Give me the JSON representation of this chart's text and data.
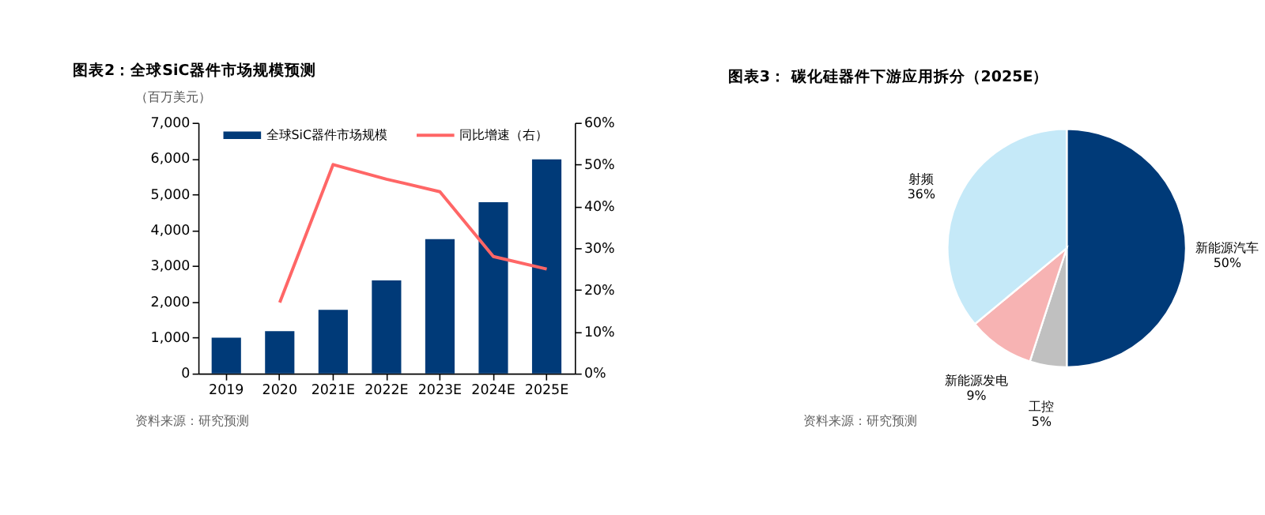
{
  "chart_data": [
    {
      "type": "bar",
      "title": "图表2：全球SiC器件市场规模预测",
      "ylabel": "（百万美元）",
      "categories": [
        "2019",
        "2020",
        "2021E",
        "2022E",
        "2023E",
        "2024E",
        "2025E"
      ],
      "series": [
        {
          "name": "全球SiC器件市场规模",
          "type": "bar",
          "color": "#003a78",
          "values": [
            1000,
            1180,
            1780,
            2600,
            3750,
            4780,
            5980
          ]
        },
        {
          "name": "同比增速（右）",
          "type": "line",
          "axis": "y2",
          "color": "#ff6666",
          "values": [
            null,
            17,
            50,
            46.5,
            43.5,
            28,
            25
          ]
        }
      ],
      "ylim": [
        0,
        7000
      ],
      "yticks": [
        {
          "value": 0,
          "label": "0"
        },
        {
          "value": 1000,
          "label": "1,000"
        },
        {
          "value": 2000,
          "label": "2,000"
        },
        {
          "value": 3000,
          "label": "3,000"
        },
        {
          "value": 4000,
          "label": "4,000"
        },
        {
          "value": 5000,
          "label": "5,000"
        },
        {
          "value": 6000,
          "label": "6,000"
        },
        {
          "value": 7000,
          "label": "7,000"
        }
      ],
      "y2lim": [
        0,
        60
      ],
      "y2ticks": [
        {
          "value": 0,
          "label": "0%"
        },
        {
          "value": 10,
          "label": "10%"
        },
        {
          "value": 20,
          "label": "20%"
        },
        {
          "value": 30,
          "label": "30%"
        },
        {
          "value": 40,
          "label": "40%"
        },
        {
          "value": 50,
          "label": "50%"
        },
        {
          "value": 60,
          "label": "60%"
        }
      ],
      "grid": false,
      "legend": "top",
      "annotations": [
        "资料来源：研究预测"
      ]
    },
    {
      "type": "pie",
      "title": "图表3：  碳化硅器件下游应用拆分（2025E）",
      "categories": [
        "新能源汽车",
        "工控",
        "新能源发电",
        "射频"
      ],
      "values": [
        50,
        5,
        9,
        36
      ],
      "colors": [
        "#003a78",
        "#c0c0c0",
        "#f7b3b3",
        "#c5e9f8"
      ],
      "value_labels": [
        "50%",
        "5%",
        "9%",
        "36%"
      ],
      "legend": false,
      "annotations": [
        "资料来源：研究预测"
      ]
    }
  ]
}
